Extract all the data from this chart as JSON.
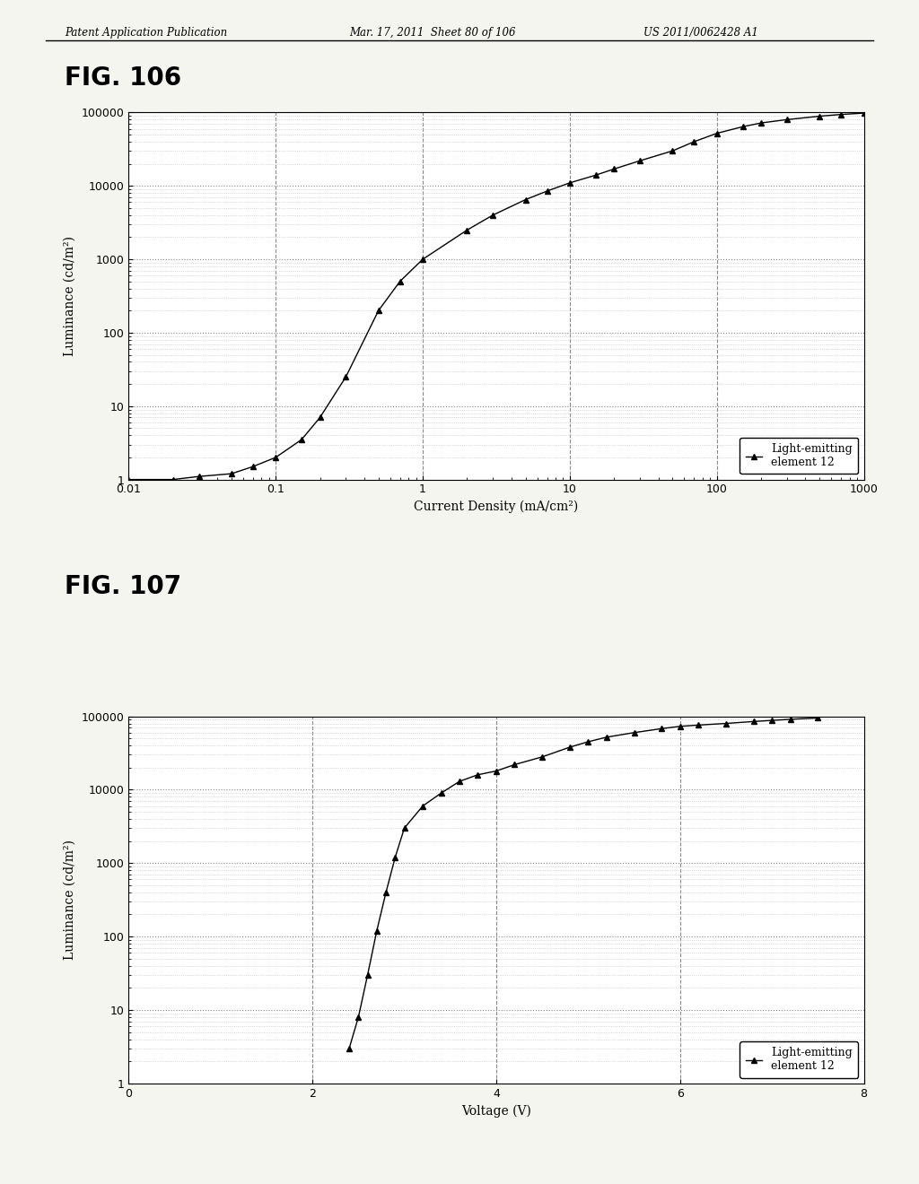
{
  "header_left": "Patent Application Publication",
  "header_mid": "Mar. 17, 2011  Sheet 80 of 106",
  "header_right": "US 2011/0062428 A1",
  "fig1_title": "FIG. 106",
  "fig2_title": "FIG. 107",
  "fig1_xlabel": "Current Density (mA/cm²)",
  "fig1_ylabel": "Luminance (cd/m²)",
  "fig2_xlabel": "Voltage (V)",
  "fig2_ylabel": "Luminance (cd/m²)",
  "legend_label": "Light-emitting\nelement 12",
  "fig1_xlim": [
    0.01,
    1000
  ],
  "fig1_ylim": [
    1,
    100000
  ],
  "fig2_xlim": [
    0,
    8
  ],
  "fig2_ylim": [
    1,
    100000
  ],
  "fig2_xticks": [
    0,
    2,
    4,
    6,
    8
  ],
  "fig1_data_x": [
    0.01,
    0.02,
    0.03,
    0.05,
    0.07,
    0.1,
    0.15,
    0.2,
    0.3,
    0.5,
    0.7,
    1.0,
    2.0,
    3.0,
    5.0,
    7.0,
    10.0,
    15.0,
    20.0,
    30.0,
    50.0,
    70.0,
    100.0,
    150.0,
    200.0,
    300.0,
    500.0,
    700.0,
    1000.0
  ],
  "fig1_data_y": [
    1.0,
    1.0,
    1.1,
    1.2,
    1.5,
    2.0,
    3.5,
    7.0,
    25.0,
    200.0,
    500.0,
    1000.0,
    2500.0,
    4000.0,
    6500.0,
    8500.0,
    11000.0,
    14000.0,
    17000.0,
    22000.0,
    30000.0,
    40000.0,
    52000.0,
    64000.0,
    72000.0,
    80000.0,
    89000.0,
    94000.0,
    98000.0
  ],
  "fig2_data_x": [
    2.4,
    2.5,
    2.6,
    2.7,
    2.8,
    2.9,
    3.0,
    3.2,
    3.4,
    3.6,
    3.8,
    4.0,
    4.2,
    4.5,
    4.8,
    5.0,
    5.2,
    5.5,
    5.8,
    6.0,
    6.2,
    6.5,
    6.8,
    7.0,
    7.2,
    7.5
  ],
  "fig2_data_y": [
    3.0,
    8.0,
    30.0,
    120.0,
    400.0,
    1200.0,
    3000.0,
    6000.0,
    9000.0,
    13000.0,
    16000.0,
    18000.0,
    22000.0,
    28000.0,
    38000.0,
    45000.0,
    52000.0,
    60000.0,
    68000.0,
    73000.0,
    76000.0,
    80000.0,
    85000.0,
    88000.0,
    91000.0,
    95000.0
  ],
  "line_color": "black",
  "marker": "^",
  "marker_size": 4,
  "bg_color": "#f5f5f0",
  "plot_bg": "white",
  "grid_dotted_color": "#888888",
  "grid_dashed_color": "#888888"
}
